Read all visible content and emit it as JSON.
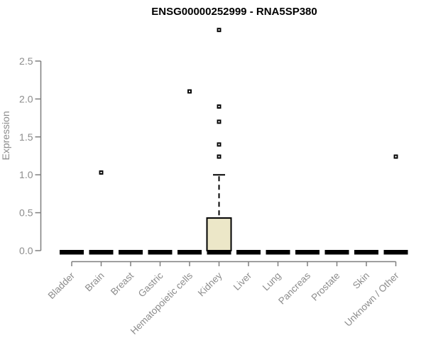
{
  "chart_data": {
    "type": "boxplot",
    "title": "ENSG00000252999 - RNA5SP380",
    "ylabel": "Expression",
    "yticks": [
      0.0,
      0.5,
      1.0,
      1.5,
      2.0,
      2.5
    ],
    "ylim": [
      0.0,
      2.5
    ],
    "grid": false,
    "legend": null,
    "categories": [
      "Bladder",
      "Brain",
      "Breast",
      "Gastric",
      "Hematopoietic cells",
      "Kidney",
      "Liver",
      "Lung",
      "Pancreas",
      "Prostate",
      "Skin",
      "Unknown / Other"
    ],
    "series": [
      {
        "name": "Bladder",
        "q1": 0,
        "median": 0,
        "q3": 0,
        "whisker_low": 0,
        "whisker_high": 0,
        "outliers": []
      },
      {
        "name": "Brain",
        "q1": 0,
        "median": 0,
        "q3": 0,
        "whisker_low": 0,
        "whisker_high": 0,
        "outliers": [
          1.03
        ]
      },
      {
        "name": "Breast",
        "q1": 0,
        "median": 0,
        "q3": 0,
        "whisker_low": 0,
        "whisker_high": 0,
        "outliers": []
      },
      {
        "name": "Gastric",
        "q1": 0,
        "median": 0,
        "q3": 0,
        "whisker_low": 0,
        "whisker_high": 0,
        "outliers": []
      },
      {
        "name": "Hematopoietic cells",
        "q1": 0,
        "median": 0,
        "q3": 0,
        "whisker_low": 0,
        "whisker_high": 0,
        "outliers": [
          2.1
        ]
      },
      {
        "name": "Kidney",
        "q1": 0,
        "median": 0,
        "q3": 0.43,
        "whisker_low": 0,
        "whisker_high": 1.0,
        "outliers": [
          1.24,
          1.4,
          1.7,
          1.9,
          2.91
        ]
      },
      {
        "name": "Liver",
        "q1": 0,
        "median": 0,
        "q3": 0,
        "whisker_low": 0,
        "whisker_high": 0,
        "outliers": []
      },
      {
        "name": "Lung",
        "q1": 0,
        "median": 0,
        "q3": 0,
        "whisker_low": 0,
        "whisker_high": 0,
        "outliers": []
      },
      {
        "name": "Pancreas",
        "q1": 0,
        "median": 0,
        "q3": 0,
        "whisker_low": 0,
        "whisker_high": 0,
        "outliers": []
      },
      {
        "name": "Prostate",
        "q1": 0,
        "median": 0,
        "q3": 0,
        "whisker_low": 0,
        "whisker_high": 0,
        "outliers": []
      },
      {
        "name": "Skin",
        "q1": 0,
        "median": 0,
        "q3": 0,
        "whisker_low": 0,
        "whisker_high": 0,
        "outliers": []
      },
      {
        "name": "Unknown / Other",
        "q1": 0,
        "median": 0,
        "q3": 0,
        "whisker_low": 0,
        "whisker_high": 0,
        "outliers": [
          1.24
        ]
      }
    ],
    "colors": {
      "background": "#ffffff",
      "title": "#000000",
      "axis_line": "#7f7f7f",
      "tick_label": "#8c8c8c",
      "box_fill": "#ece7c8",
      "box_stroke": "#000000",
      "median": "#000000",
      "outlier": "#000000"
    }
  }
}
